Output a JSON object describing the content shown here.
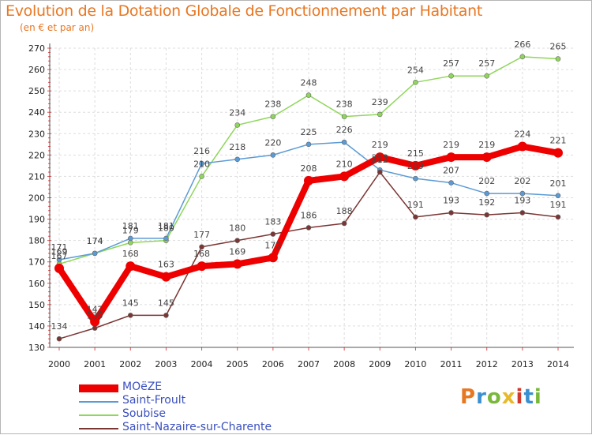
{
  "title": "Evolution de la Dotation Globale de Fonctionnement par Habitant",
  "subtitle": "(en € et par an)",
  "logo": {
    "text": "Proxiti",
    "colors": [
      "#e87722",
      "#3a8fd0",
      "#7ab83c",
      "#e8b92a",
      "#d0392b",
      "#3a8fd0",
      "#7ab83c"
    ]
  },
  "chart_data": {
    "type": "line",
    "x": [
      2000,
      2001,
      2002,
      2003,
      2004,
      2005,
      2006,
      2007,
      2008,
      2009,
      2010,
      2011,
      2012,
      2013,
      2014
    ],
    "ylim": [
      130,
      270
    ],
    "yticks": [
      130,
      140,
      150,
      160,
      170,
      180,
      190,
      200,
      210,
      220,
      230,
      240,
      250,
      260,
      270
    ],
    "grid": true,
    "legend_position": "bottom-left",
    "series": [
      {
        "name": "Soubise",
        "color": "#8fd65a",
        "values": [
          169,
          174,
          179,
          180,
          210,
          234,
          238,
          248,
          238,
          239,
          254,
          257,
          257,
          266,
          265
        ],
        "labels": [
          "169",
          "174",
          "179",
          "180",
          "210",
          "234",
          "238",
          "248",
          "238",
          "239",
          "254",
          "257",
          "257",
          "266",
          "265"
        ]
      },
      {
        "name": "Saint-Froult",
        "color": "#5b9bd5",
        "values": [
          171,
          174,
          181,
          181,
          216,
          218,
          220,
          225,
          226,
          213,
          209,
          207,
          202,
          202,
          201
        ],
        "labels": [
          "171",
          "174",
          "181",
          "181",
          "216",
          "218",
          "220",
          "225",
          "226",
          "213",
          "209",
          "207",
          "202",
          "202",
          "201"
        ]
      },
      {
        "name": "Saint-Nazaire-sur-Charente",
        "color": "#7b3533",
        "values": [
          134,
          139,
          145,
          145,
          177,
          180,
          183,
          186,
          188,
          212,
          191,
          193,
          192,
          193,
          191
        ],
        "labels": [
          "134",
          "139",
          "145",
          "145",
          "177",
          "180",
          "183",
          "186",
          "188",
          "212",
          "191",
          "193",
          "192",
          "193",
          "191"
        ]
      },
      {
        "name": "MOëZE",
        "color": "#ee0000",
        "values": [
          167,
          142,
          168,
          163,
          168,
          169,
          172,
          208,
          210,
          219,
          215,
          219,
          219,
          224,
          221
        ],
        "labels": [
          "167",
          "142",
          "168",
          "163",
          "168",
          "169",
          "172",
          "208",
          "210",
          "219",
          "215",
          "219",
          "219",
          "224",
          "221"
        ]
      }
    ]
  }
}
